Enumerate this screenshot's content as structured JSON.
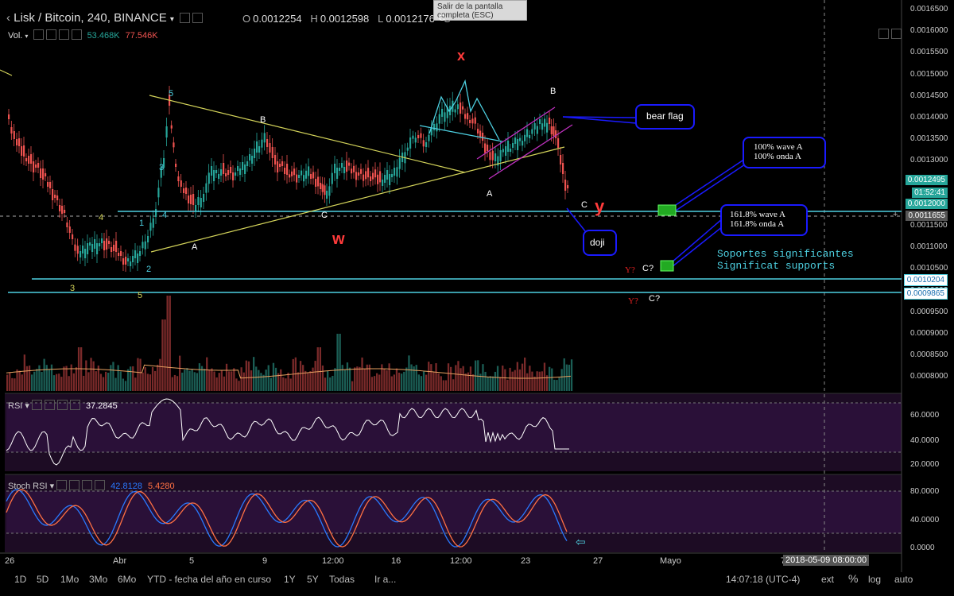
{
  "header": {
    "symbol": "Lisk / Bitcoin, 240, BINANCE",
    "dropdown_icon": "chevron-down-icon",
    "o_label": "O",
    "o_value": "0.0012254",
    "h_label": "H",
    "h_value": "0.0012598",
    "l_label": "L",
    "l_value": "0.0012176",
    "c_label": "C",
    "vol_label": "Vol.",
    "vol_value1": "53.468K",
    "vol_value2": "77.546K"
  },
  "tooltip": {
    "text": "Salir de la pantalla completa (ESC)"
  },
  "price_axis": {
    "ticks": [
      "0.0016500",
      "0.0016000",
      "0.0015500",
      "0.0015000",
      "0.0014500",
      "0.0014000",
      "0.0013500",
      "0.0013000",
      "0.0012500",
      "0.0012000",
      "0.0011500",
      "0.0011000",
      "0.0010500",
      "0.0010000",
      "0.0009500",
      "0.0009000",
      "0.0008500",
      "0.0008000"
    ],
    "current_price": "0.0012495",
    "countdown": "01:52:41",
    "crosshair_price": "0.0011655",
    "support1": "0.0010204",
    "support2": "0.0009865",
    "hidden_tag": "0.0012000"
  },
  "rsi": {
    "label": "RSI",
    "value": "37.2845",
    "ticks": [
      "60.0000",
      "40.0000",
      "20.0000"
    ]
  },
  "stoch": {
    "label": "Stoch RSI",
    "k": "42.8128",
    "d": "5.4280",
    "ticks": [
      "80.0000",
      "40.0000",
      "0.0000"
    ]
  },
  "time_axis": {
    "labels": [
      "26",
      "Abr",
      "5",
      "9",
      "12:00",
      "16",
      "12:00",
      "23",
      "27",
      "Mayo",
      "7"
    ],
    "crosshair_time": "2018-05-09 08:00:00"
  },
  "annotations": {
    "x_label": "x",
    "w_label": "w",
    "y_label": "y",
    "bear_flag": "bear flag",
    "doji": "doji",
    "wave_a_1": "100% wave A",
    "wave_a_2": "100% onda A",
    "wave_1618_1": "161.8% wave A",
    "wave_1618_2": "161.8% onda A",
    "supports_1": "Soportes significantes",
    "supports_2": "Significat supports",
    "wave_letters": [
      "5",
      "3",
      "4",
      "1",
      "2",
      "3",
      "5",
      "4",
      "A",
      "B",
      "C",
      "A",
      "B",
      "C",
      "C",
      "Y?",
      "C?",
      "Y?",
      "C?"
    ]
  },
  "toolbar": {
    "ranges": [
      "1D",
      "5D",
      "1Mo",
      "3Mo",
      "6Mo",
      "YTD - fecha del año en curso",
      "1Y",
      "5Y",
      "Todas"
    ],
    "goto": "Ir a...",
    "clock": "14:07:18 (UTC-4)",
    "ext": "ext",
    "percent": "%",
    "log": "log",
    "auto": "auto"
  },
  "colors": {
    "up": "#26a69a",
    "down": "#ef5350",
    "cyan": "#4dd0e1",
    "yellow": "#d4d45a",
    "red": "#ff3b3b",
    "blue": "#1a1aff",
    "purple": "#2a1038"
  }
}
